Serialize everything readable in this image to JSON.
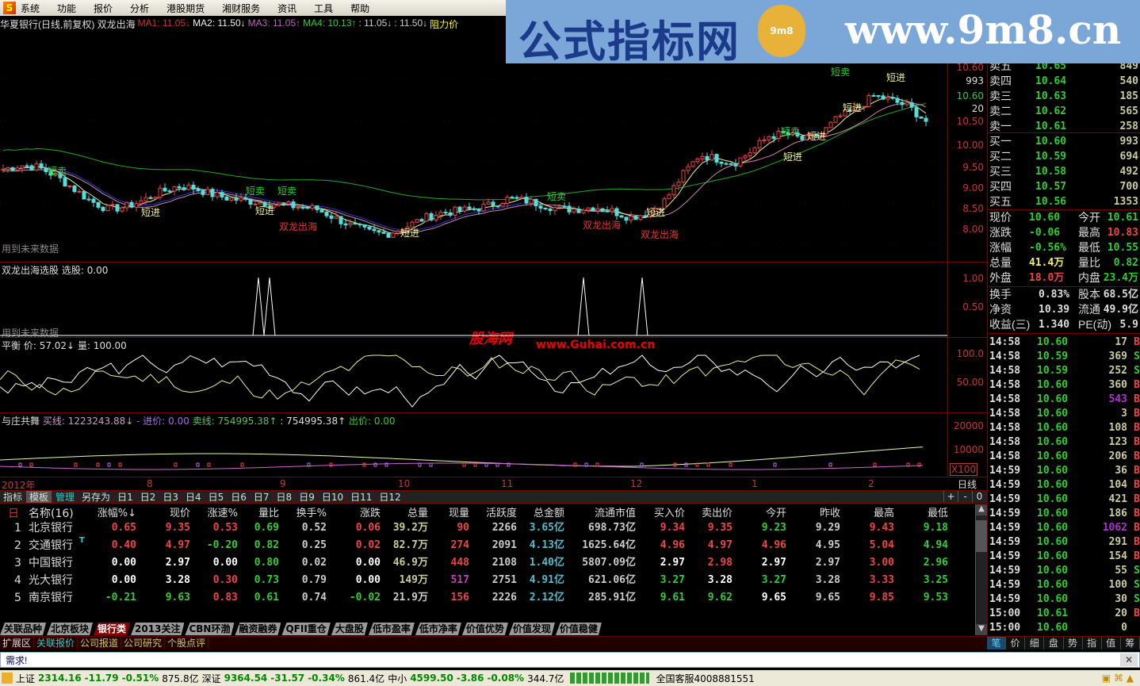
{
  "menu": {
    "items": [
      "系统",
      "功能",
      "报价",
      "分析",
      "港股期货",
      "湘财服务",
      "资讯",
      "工具",
      "帮助"
    ]
  },
  "banner": {
    "title": "公式指标网",
    "seal": "9m8",
    "url": "www.9m8.cn"
  },
  "main_chart": {
    "title": "华夏银行(日线,前复权) 双龙出海",
    "indicators": [
      {
        "text": "MA1: 11.05↓",
        "color": "#c33"
      },
      {
        "text": "MA2: 11.50↓",
        "color": "#eee"
      },
      {
        "text": "MA3: 11.05↑",
        "color": "#b6b"
      },
      {
        "text": "MA4: 10.13↑",
        "color": "#3c3"
      },
      {
        "text": ": 11.05↓",
        "color": "#ccc"
      },
      {
        "text": ": 11.50↓",
        "color": "#ccc"
      },
      {
        "text": "阻力价",
        "color": "#ff0"
      }
    ],
    "price_axis": [
      "10.60",
      "993",
      "10.60",
      "20",
      "10.50",
      "10.00",
      "9.50",
      "9.00",
      "8.50",
      "8.00"
    ],
    "note": "用到未来数据",
    "signals": {
      "short_sell": "短卖",
      "short_buy": "短进",
      "dragon": "双龙出海"
    },
    "kline_closes": [
      9.45,
      9.55,
      9.5,
      9.3,
      9.0,
      8.7,
      8.5,
      8.55,
      8.7,
      8.9,
      9.05,
      9.0,
      8.85,
      8.75,
      8.7,
      8.65,
      8.6,
      8.55,
      8.5,
      8.3,
      8.1,
      7.95,
      7.9,
      8.05,
      8.25,
      8.4,
      8.45,
      8.5,
      8.6,
      8.75,
      8.7,
      8.6,
      8.5,
      8.5,
      8.55,
      8.45,
      8.3,
      8.4,
      8.7,
      9.3,
      9.8,
      9.7,
      9.6,
      9.9,
      10.25,
      10.3,
      10.15,
      10.3,
      10.7,
      10.9,
      11.2,
      11.1,
      10.95,
      10.6
    ]
  },
  "sub1": {
    "title": "双龙出海选股",
    "label": "选股: 0.00",
    "axis": [
      "1.00",
      "0.50"
    ],
    "note": "用到未来数据",
    "watermark1": "股海网",
    "watermark2": "www.Guhai.com.cn"
  },
  "sub2": {
    "title": "平衡",
    "price": "价: 57.02↓",
    "vol": "量: 100.00",
    "axis": [
      "100.0",
      "50.00"
    ]
  },
  "sub3": {
    "title": "与庄共舞",
    "buy": "买线: 1223243.88↓",
    "enter": "- 进价: 0.00",
    "sell": "卖线: 754995.38↑",
    "val": ": 754995.38↑",
    "out": "出价: 0.00",
    "axis": [
      "20000",
      "10000",
      "X100"
    ]
  },
  "date_axis": {
    "labels": [
      "2012年",
      "8",
      "9",
      "10",
      "11",
      "12",
      "1",
      "2"
    ],
    "period": "日线"
  },
  "tabrow": {
    "items": [
      "指标",
      "模板",
      "管理",
      "另存为",
      "日1",
      "日2",
      "日3",
      "日4",
      "日5",
      "日6",
      "日7",
      "日8",
      "日9",
      "日10",
      "日11",
      "日12"
    ],
    "controls": [
      "+",
      "-",
      "0"
    ]
  },
  "table": {
    "headers": [
      "名称(16)",
      "涨幅%↓",
      "现价",
      "涨速%",
      "量比",
      "换手%",
      "涨跌",
      "总量",
      "现量",
      "活跃度",
      "总金额",
      "流通市值",
      "买入价",
      "卖出价",
      "今开",
      "昨收",
      "最高",
      "最低"
    ],
    "rows": [
      {
        "idx": "1",
        "name": "北京银行",
        "cells": [
          "0.65",
          "9.35",
          "0.53",
          "0.69",
          "0.52",
          "0.06",
          "39.2万",
          "90",
          "2266",
          "3.65亿",
          "698.73亿",
          "9.34",
          "9.35",
          "9.23",
          "9.29",
          "9.43",
          "9.18"
        ],
        "colors": [
          "r",
          "r",
          "r",
          "g",
          "gr",
          "r",
          "y",
          "r",
          "gr",
          "c",
          "gr",
          "r",
          "r",
          "g",
          "gr",
          "r",
          "g"
        ]
      },
      {
        "idx": "2",
        "name": "交通银行",
        "mark": "T",
        "cells": [
          "0.40",
          "4.97",
          "-0.20",
          "0.82",
          "0.25",
          "0.02",
          "82.7万",
          "274",
          "2091",
          "4.13亿",
          "1625.64亿",
          "4.96",
          "4.97",
          "4.96",
          "4.95",
          "5.04",
          "4.94"
        ],
        "colors": [
          "r",
          "r",
          "g",
          "g",
          "gr",
          "r",
          "y",
          "r",
          "gr",
          "c",
          "gr",
          "r",
          "r",
          "r",
          "gr",
          "r",
          "g"
        ]
      },
      {
        "idx": "3",
        "name": "中国银行",
        "cells": [
          "0.00",
          "2.97",
          "0.00",
          "0.80",
          "0.02",
          "0.00",
          "46.9万",
          "448",
          "2108",
          "1.40亿",
          "5807.09亿",
          "2.97",
          "2.98",
          "2.97",
          "2.97",
          "3.00",
          "2.96"
        ],
        "colors": [
          "w",
          "w",
          "w",
          "g",
          "gr",
          "w",
          "y",
          "r",
          "gr",
          "c",
          "gr",
          "w",
          "r",
          "w",
          "gr",
          "r",
          "g"
        ]
      },
      {
        "idx": "4",
        "name": "光大银行",
        "cells": [
          "0.00",
          "3.28",
          "0.30",
          "0.73",
          "0.79",
          "0.00",
          "149万",
          "517",
          "2751",
          "4.91亿",
          "621.06亿",
          "3.27",
          "3.28",
          "3.27",
          "3.28",
          "3.33",
          "3.25"
        ],
        "colors": [
          "w",
          "w",
          "r",
          "g",
          "gr",
          "w",
          "y",
          "m",
          "gr",
          "c",
          "gr",
          "g",
          "w",
          "g",
          "gr",
          "r",
          "g"
        ]
      },
      {
        "idx": "5",
        "name": "南京银行",
        "cells": [
          "-0.21",
          "9.63",
          "0.83",
          "0.61",
          "0.74",
          "-0.02",
          "21.9万",
          "156",
          "2226",
          "2.12亿",
          "285.91亿",
          "9.61",
          "9.62",
          "9.65",
          "9.65",
          "9.85",
          "9.53"
        ],
        "colors": [
          "g",
          "g",
          "r",
          "g",
          "gr",
          "g",
          "gr",
          "r",
          "gr",
          "c",
          "gr",
          "g",
          "g",
          "w",
          "gr",
          "r",
          "g"
        ]
      }
    ]
  },
  "sheets": [
    "关联品种",
    "北京板块",
    "银行类",
    "2013关注",
    "CBN环渤",
    "融资融券",
    "QFII重仓",
    "大盘股",
    "低市盈率",
    "低市净率",
    "价值优势",
    "价值发现",
    "价值稳健"
  ],
  "ext_tabs": [
    "扩展区",
    "关联报价",
    "公司报道",
    "公司研究",
    "个股点评"
  ],
  "input": {
    "value": "需求!"
  },
  "status": {
    "sh_label": "上证",
    "sh": "2314.16",
    "sh_chg": "-11.79",
    "sh_pct": "-0.51%",
    "sh_amt": "875.8亿",
    "sz_label": "深证",
    "sz": "9364.54",
    "sz_chg": "-31.57",
    "sz_pct": "-0.34%",
    "sz_amt": "861.4亿",
    "zx_label": "中小",
    "zx": "4599.50",
    "zx_chg": "-3.86",
    "zx_pct": "-0.08%",
    "zx_amt": "344.7亿",
    "hotline": "全国客服4008881551"
  },
  "quote": {
    "sell": [
      {
        "l": "卖五",
        "p": "10.65",
        "v": "849"
      },
      {
        "l": "卖四",
        "p": "10.64",
        "v": "540"
      },
      {
        "l": "卖三",
        "p": "10.63",
        "v": "185"
      },
      {
        "l": "卖二",
        "p": "10.62",
        "v": "565"
      },
      {
        "l": "卖一",
        "p": "10.61",
        "v": "258"
      }
    ],
    "buy": [
      {
        "l": "买一",
        "p": "10.60",
        "v": "993"
      },
      {
        "l": "买二",
        "p": "10.59",
        "v": "694"
      },
      {
        "l": "买三",
        "p": "10.58",
        "v": "492"
      },
      {
        "l": "买四",
        "p": "10.57",
        "v": "700"
      },
      {
        "l": "买五",
        "p": "10.56",
        "v": "1353"
      }
    ],
    "stats": [
      {
        "l": "现价",
        "p": "10.60",
        "pc": "#3c3",
        "l2": "今开",
        "v": "10.61",
        "vc": "#3c3"
      },
      {
        "l": "涨跌",
        "p": "-0.06",
        "pc": "#3c3",
        "l2": "最高",
        "v": "10.83",
        "vc": "#e44"
      },
      {
        "l": "涨幅",
        "p": "-0.56%",
        "pc": "#3c3",
        "l2": "最低",
        "v": "10.55",
        "vc": "#3c3"
      },
      {
        "l": "总量",
        "p": "41.4万",
        "pc": "#ee6",
        "l2": "量比",
        "v": "0.82",
        "vc": "#3c3"
      },
      {
        "l": "外盘",
        "p": "18.0万",
        "pc": "#e44",
        "l2": "内盘",
        "v": "23.4万",
        "vc": "#3c3"
      }
    ],
    "fund": [
      {
        "l": "换手",
        "p": "0.83%",
        "l2": "股本",
        "v": "68.5亿"
      },
      {
        "l": "净资",
        "p": "10.39",
        "l2": "流通",
        "v": "49.9亿"
      },
      {
        "l": "收益(三)",
        "p": "1.340",
        "l2": "PE(动)",
        "v": "5.9"
      }
    ]
  },
  "ticks": [
    [
      "14:58",
      "10.60",
      "17",
      "B"
    ],
    [
      "14:58",
      "10.59",
      "369",
      "S"
    ],
    [
      "14:58",
      "10.59",
      "252",
      "S"
    ],
    [
      "14:58",
      "10.60",
      "360",
      "B"
    ],
    [
      "14:58",
      "10.60",
      "543",
      "B"
    ],
    [
      "14:58",
      "10.60",
      "3",
      "B"
    ],
    [
      "14:58",
      "10.60",
      "108",
      "B"
    ],
    [
      "14:58",
      "10.60",
      "123",
      "B"
    ],
    [
      "14:58",
      "10.60",
      "206",
      "B"
    ],
    [
      "14:59",
      "10.60",
      "36",
      "B"
    ],
    [
      "14:59",
      "10.60",
      "104",
      "B"
    ],
    [
      "14:59",
      "10.60",
      "421",
      "B"
    ],
    [
      "14:59",
      "10.60",
      "186",
      "B"
    ],
    [
      "14:59",
      "10.60",
      "1062",
      "B"
    ],
    [
      "14:59",
      "10.60",
      "291",
      "B"
    ],
    [
      "14:59",
      "10.60",
      "154",
      "B"
    ],
    [
      "14:59",
      "10.60",
      "55",
      "S"
    ],
    [
      "14:59",
      "10.60",
      "100",
      "S"
    ],
    [
      "14:59",
      "10.60",
      "30",
      "S"
    ],
    [
      "15:00",
      "10.61",
      "20",
      "B"
    ],
    [
      "15:00",
      "10.60",
      "0",
      ""
    ]
  ],
  "right_tabs": [
    "笔",
    "价",
    "细",
    "盘",
    "势",
    "指",
    "值",
    "筹"
  ],
  "colors": {
    "up": "#e44",
    "down": "#3c3",
    "border": "#7a0000",
    "banner": "#7aa6d8"
  }
}
